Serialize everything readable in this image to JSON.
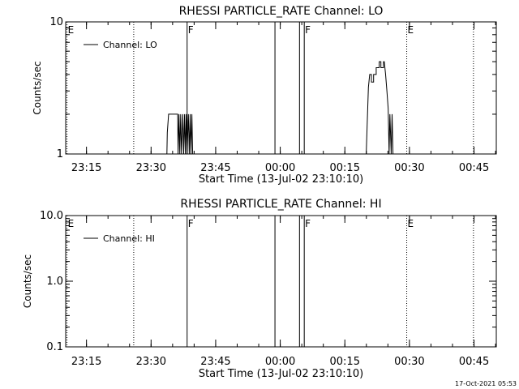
{
  "footer_timestamp": "17-Oct-2021 05:53",
  "chart_data": [
    {
      "type": "line",
      "title": "RHESSI PARTICLE_RATE Channel: LO",
      "xlabel": "Start Time (13-Jul-02 23:10:10)",
      "ylabel": "Counts/sec",
      "x_unit": "minutes after 23:10:10",
      "xlim": [
        0,
        100
      ],
      "ylim": [
        1,
        10
      ],
      "y_scale": "log",
      "x_ticks": [
        {
          "value": 4.83,
          "label": "23:15"
        },
        {
          "value": 19.83,
          "label": "23:30"
        },
        {
          "value": 34.83,
          "label": "23:45"
        },
        {
          "value": 49.83,
          "label": "00:00"
        },
        {
          "value": 64.83,
          "label": "00:15"
        },
        {
          "value": 79.83,
          "label": "00:30"
        },
        {
          "value": 94.83,
          "label": "00:45"
        }
      ],
      "y_ticks": [
        {
          "value": 1,
          "label": "1"
        },
        {
          "value": 10,
          "label": "10"
        }
      ],
      "legend": {
        "position": "top-left",
        "entries": [
          "Channel: LO"
        ]
      },
      "markers": [
        {
          "x": 0.3,
          "label": "E",
          "style": "dotted"
        },
        {
          "x": 15.8,
          "label": "",
          "style": "dotted"
        },
        {
          "x": 28.2,
          "label": "F",
          "style": "solid"
        },
        {
          "x": 48.6,
          "label": "",
          "style": "solid"
        },
        {
          "x": 54.3,
          "label": "",
          "style": "solid"
        },
        {
          "x": 55.4,
          "label": "F",
          "style": "solid"
        },
        {
          "x": 79.2,
          "label": "E",
          "style": "dotted"
        },
        {
          "x": 94.7,
          "label": "",
          "style": "dotted"
        }
      ],
      "series": [
        {
          "name": "Channel: LO",
          "points": [
            [
              23.5,
              1
            ],
            [
              23.6,
              1.45
            ],
            [
              23.9,
              2
            ],
            [
              26.0,
              2
            ],
            [
              26.1,
              1
            ],
            [
              26.3,
              2
            ],
            [
              26.5,
              1
            ],
            [
              26.7,
              2
            ],
            [
              26.9,
              1
            ],
            [
              27.2,
              2
            ],
            [
              27.4,
              1
            ],
            [
              27.6,
              2
            ],
            [
              27.8,
              1
            ],
            [
              28.0,
              2
            ],
            [
              28.2,
              1
            ],
            [
              28.5,
              2
            ],
            [
              28.7,
              1
            ],
            [
              28.9,
              2
            ],
            [
              29.1,
              1
            ],
            [
              29.3,
              2
            ],
            [
              29.5,
              1
            ],
            [
              69.8,
              1
            ],
            [
              70.1,
              2
            ],
            [
              70.3,
              3.2
            ],
            [
              70.6,
              4
            ],
            [
              71.0,
              4
            ],
            [
              71.0,
              3.5
            ],
            [
              71.5,
              3.5
            ],
            [
              71.5,
              4
            ],
            [
              72.1,
              4
            ],
            [
              72.1,
              4.5
            ],
            [
              72.8,
              4.5
            ],
            [
              72.8,
              5
            ],
            [
              73.2,
              5
            ],
            [
              73.2,
              4.5
            ],
            [
              73.8,
              4.5
            ],
            [
              73.8,
              5
            ],
            [
              74.0,
              5
            ],
            [
              74.3,
              4
            ],
            [
              74.6,
              3
            ],
            [
              74.9,
              2.2
            ],
            [
              75.1,
              1
            ],
            [
              75.3,
              2
            ],
            [
              75.6,
              1
            ],
            [
              75.8,
              2
            ],
            [
              76.0,
              1
            ]
          ]
        }
      ]
    },
    {
      "type": "line",
      "title": "RHESSI PARTICLE_RATE Channel: HI",
      "xlabel": "Start Time (13-Jul-02 23:10:10)",
      "ylabel": "Counts/sec",
      "x_unit": "minutes after 23:10:10",
      "xlim": [
        0,
        100
      ],
      "ylim": [
        0.1,
        10
      ],
      "y_scale": "log",
      "x_ticks": [
        {
          "value": 4.83,
          "label": "23:15"
        },
        {
          "value": 19.83,
          "label": "23:30"
        },
        {
          "value": 34.83,
          "label": "23:45"
        },
        {
          "value": 49.83,
          "label": "00:00"
        },
        {
          "value": 64.83,
          "label": "00:15"
        },
        {
          "value": 79.83,
          "label": "00:30"
        },
        {
          "value": 94.83,
          "label": "00:45"
        }
      ],
      "y_ticks": [
        {
          "value": 0.1,
          "label": "0.1"
        },
        {
          "value": 1,
          "label": "1.0"
        },
        {
          "value": 10,
          "label": "10.0"
        }
      ],
      "legend": {
        "position": "top-left",
        "entries": [
          "Channel: HI"
        ]
      },
      "markers": [
        {
          "x": 0.3,
          "label": "E",
          "style": "dotted"
        },
        {
          "x": 15.8,
          "label": "",
          "style": "dotted"
        },
        {
          "x": 28.2,
          "label": "F",
          "style": "solid"
        },
        {
          "x": 48.6,
          "label": "",
          "style": "solid"
        },
        {
          "x": 54.3,
          "label": "",
          "style": "solid"
        },
        {
          "x": 55.4,
          "label": "F",
          "style": "solid"
        },
        {
          "x": 79.2,
          "label": "E",
          "style": "dotted"
        },
        {
          "x": 94.7,
          "label": "",
          "style": "dotted"
        }
      ],
      "series": [
        {
          "name": "Channel: HI",
          "points": []
        }
      ]
    }
  ]
}
